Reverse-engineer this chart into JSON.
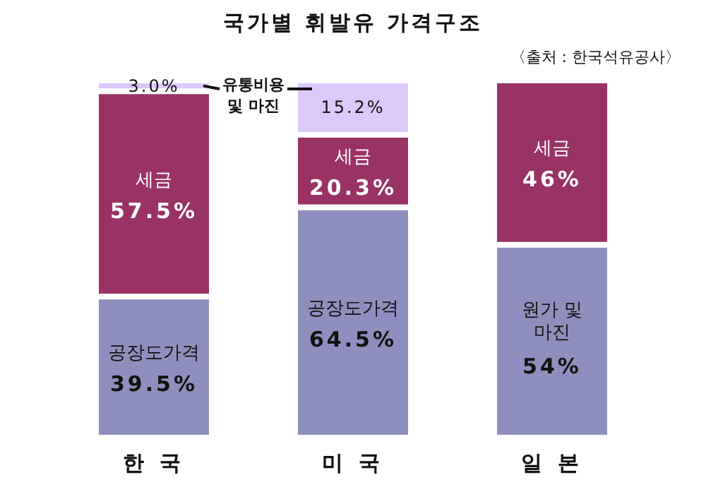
{
  "chart_data": {
    "type": "bar",
    "stacked": true,
    "title": "국가별 휘발유 가격구조",
    "annotations": [
      "〈출처 : 한국석유공사〉"
    ],
    "categories": [
      "한 국",
      "미 국",
      "일 본"
    ],
    "series": [
      {
        "name": "공장도가격",
        "color": "#8f8fbf",
        "values": [
          39.5,
          64.5,
          null
        ],
        "value_labels": [
          "39.5%",
          "64.5%",
          null
        ]
      },
      {
        "name": "원가 및\n마진",
        "color": "#8f8fbf",
        "values": [
          null,
          null,
          54
        ],
        "value_labels": [
          null,
          null,
          "54%"
        ]
      },
      {
        "name": "세금",
        "color": "#993366",
        "values": [
          57.5,
          20.3,
          46
        ],
        "value_labels": [
          "57.5%",
          "20.3%",
          "46%"
        ]
      },
      {
        "name": "유통비용\n및 마진",
        "color": "#dcc8fa",
        "values": [
          3.0,
          15.2,
          null
        ],
        "value_labels": [
          "3.0%",
          "15.2%",
          null
        ]
      }
    ]
  }
}
